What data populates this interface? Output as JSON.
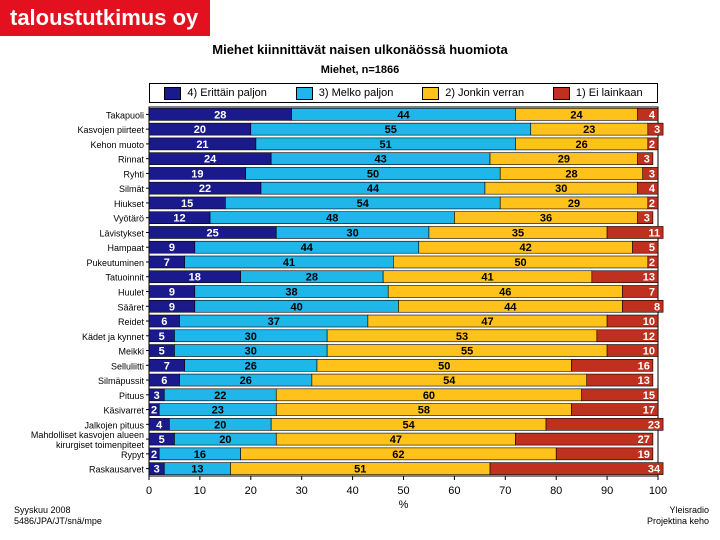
{
  "header": {
    "brand": "taloustutkimus oy"
  },
  "footer": {
    "left_line1": "Syyskuu 2008",
    "left_line2": "5486/JPA/JT/snä/mpe",
    "right_line1": "Yleisradio",
    "right_line2": "Projektina keho"
  },
  "chart_data": {
    "type": "bar",
    "orientation": "horizontal",
    "stacked": true,
    "title": "Miehet kiinnittävät naisen ulkonäössä huomiota",
    "subtitle": "Miehet, n=1866",
    "xlabel": "%",
    "ylabel": "",
    "xlim": [
      0,
      100
    ],
    "xticks": [
      0,
      10,
      20,
      30,
      40,
      50,
      60,
      70,
      80,
      90,
      100
    ],
    "legend_position": "top",
    "categories": [
      "Takapuoli",
      "Kasvojen piirteet",
      "Kehon muoto",
      "Rinnat",
      "Ryhti",
      "Silmät",
      "Hiukset",
      "Vyötärö",
      "Lävistykset",
      "Hampaat",
      "Pukeutuminen",
      "Tatuoinnit",
      "Huulet",
      "Sääret",
      "Reidet",
      "Kädet ja kynnet",
      "Meikki",
      "Selluliitti",
      "Silmäpussit",
      "Pituus",
      "Käsivarret",
      "Jalkojen pituus",
      "Mahdolliset kasvojen alueen kirurgiset toimenpiteet",
      "Rypyt",
      "Raskausarvet"
    ],
    "category_lines": [
      [
        "Takapuoli"
      ],
      [
        "Kasvojen piirteet"
      ],
      [
        "Kehon muoto"
      ],
      [
        "Rinnat"
      ],
      [
        "Ryhti"
      ],
      [
        "Silmät"
      ],
      [
        "Hiukset"
      ],
      [
        "Vyötärö"
      ],
      [
        "Lävistykset"
      ],
      [
        "Hampaat"
      ],
      [
        "Pukeutuminen"
      ],
      [
        "Tatuoinnit"
      ],
      [
        "Huulet"
      ],
      [
        "Sääret"
      ],
      [
        "Reidet"
      ],
      [
        "Kädet ja kynnet"
      ],
      [
        "Meikki"
      ],
      [
        "Selluliitti"
      ],
      [
        "Silmäpussit"
      ],
      [
        "Pituus"
      ],
      [
        "Käsivarret"
      ],
      [
        "Jalkojen pituus"
      ],
      [
        "Mahdolliset kasvojen alueen",
        "kirurgiset toimenpiteet"
      ],
      [
        "Rypyt"
      ],
      [
        "Raskausarvet"
      ]
    ],
    "series": [
      {
        "name": "4) Erittäin paljon",
        "color": "#1a1a8c",
        "label_color": "#ffffff",
        "values": [
          28,
          20,
          21,
          24,
          19,
          22,
          15,
          12,
          25,
          9,
          7,
          18,
          9,
          9,
          6,
          5,
          5,
          7,
          6,
          3,
          2,
          4,
          5,
          2,
          3
        ]
      },
      {
        "name": "3) Melko paljon",
        "color": "#1fb6ea",
        "label_color": "#000000",
        "values": [
          44,
          55,
          51,
          43,
          50,
          44,
          54,
          48,
          30,
          44,
          41,
          28,
          38,
          40,
          37,
          30,
          30,
          26,
          26,
          22,
          23,
          20,
          20,
          16,
          13
        ]
      },
      {
        "name": "2) Jonkin verran",
        "color": "#ffc21a",
        "label_color": "#000000",
        "values": [
          24,
          23,
          26,
          29,
          28,
          30,
          29,
          36,
          35,
          42,
          50,
          41,
          46,
          44,
          47,
          53,
          55,
          50,
          54,
          60,
          58,
          54,
          47,
          62,
          51
        ]
      },
      {
        "name": "1) Ei lainkaan",
        "color": "#c0301e",
        "label_color": "#ffffff",
        "values": [
          4,
          3,
          2,
          3,
          3,
          4,
          2,
          3,
          11,
          5,
          2,
          13,
          7,
          8,
          10,
          12,
          10,
          16,
          13,
          15,
          17,
          23,
          27,
          19,
          34
        ]
      }
    ]
  }
}
